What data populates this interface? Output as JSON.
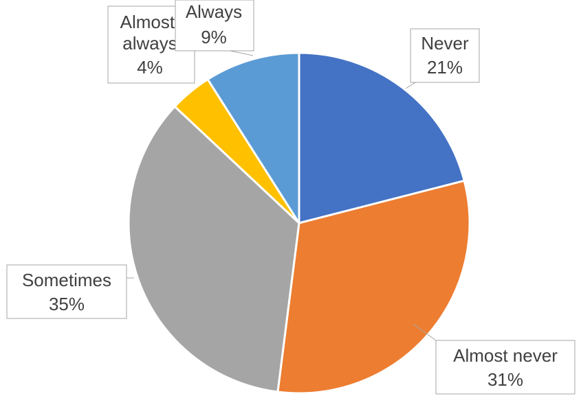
{
  "chart_data": {
    "type": "pie",
    "start_angle_deg": 0,
    "direction": "clockwise",
    "legend": "none",
    "slices": [
      {
        "label": "Never",
        "percent_label": "21%",
        "value": 21,
        "color": "#4472C4"
      },
      {
        "label": "Almost never",
        "percent_label": "31%",
        "value": 31,
        "color": "#ED7D31"
      },
      {
        "label": "Sometimes",
        "percent_label": "35%",
        "value": 35,
        "color": "#A5A5A5"
      },
      {
        "label": "Almost always",
        "percent_label": "4%",
        "value": 4,
        "color": "#FFC000"
      },
      {
        "label": "Always",
        "percent_label": "9%",
        "value": 9,
        "color": "#5B9BD5"
      }
    ]
  }
}
